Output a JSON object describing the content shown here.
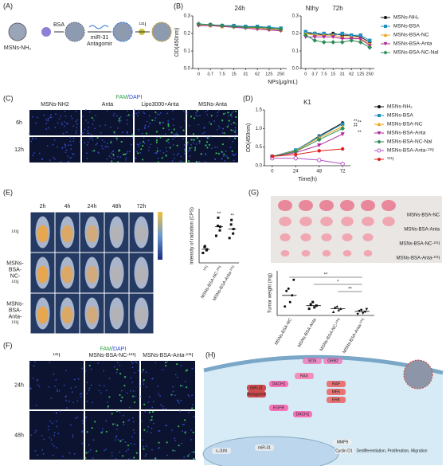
{
  "panel_labels": [
    "(A)",
    "(B)",
    "(C)",
    "(D)",
    "(E)",
    "(F)",
    "(G)",
    "(H)"
  ],
  "panel_a": {
    "labels": [
      "MSNs-NH₂",
      "BSA",
      "miR-31",
      "Antagomir",
      "¹³¹I"
    ]
  },
  "panel_c": {
    "stain": {
      "green": "FAM",
      "blue": "/DAPI"
    },
    "columns": [
      "MSNs-NH2",
      "Anta",
      "Lipo3000+Anta",
      "MSNs-Anta"
    ],
    "rows": [
      "6h",
      "12h"
    ]
  },
  "panel_e": {
    "times": [
      "2h",
      "4h",
      "24h",
      "48h",
      "72h"
    ],
    "groups": [
      "¹³¹I",
      "MSNs-BSA-NC-¹³¹I",
      "MSNs-BSA-Anta-¹³¹I"
    ]
  },
  "panel_f": {
    "stain": {
      "green": "FAM",
      "blue": "/DAPI"
    },
    "columns": [
      "¹³¹I",
      "MSNs-BSA-NC-¹³¹I",
      "MSNs-BSA-Anta-¹³¹I"
    ],
    "rows": [
      "24h",
      "48h"
    ]
  },
  "panel_g": {
    "photo_labels": [
      "MSNs-BSA-NC",
      "MSNs-BSA-Anta",
      "MSNs-BSA-NC-¹³¹I",
      "MSNs-BSA-Anta-¹³¹I"
    ]
  },
  "panel_h": {
    "labels": [
      "SOS",
      "GRB2",
      "RAS",
      "RAF",
      "MEK",
      "ERK",
      "miR-31",
      "Antagomir",
      "DACH1",
      "EGFR",
      "DACH1",
      "c-JUN",
      "miR-31",
      "MMP9",
      "Cyclin D1",
      "Dedifferentiation, Proliferation, Migration"
    ]
  },
  "chart_data": [
    {
      "type": "line",
      "title": "24h",
      "annotation": "Nthy",
      "ylabel": "OD(450nm)",
      "xlabel": "NPs(μg/mL)",
      "categories": [
        "0",
        "3.7",
        "7.5",
        "15",
        "31",
        "62",
        "125",
        "250"
      ],
      "ylim": [
        0,
        0.3
      ],
      "yticks": [
        {
          "value": 0,
          "label": "0.0"
        },
        0.1,
        0.2,
        0.3
      ],
      "series": [
        {
          "color": "#111111",
          "marker": "circle",
          "values": [
            0.25,
            0.25,
            0.245,
            0.24,
            0.24,
            0.235,
            0.23,
            0.225
          ]
        },
        {
          "color": "#1f8fbf",
          "marker": "square",
          "values": [
            0.25,
            0.25,
            0.245,
            0.245,
            0.24,
            0.24,
            0.235,
            0.23
          ]
        },
        {
          "color": "#e8a317",
          "marker": "triangle",
          "values": [
            0.25,
            0.245,
            0.24,
            0.24,
            0.235,
            0.23,
            0.225,
            0.22
          ]
        },
        {
          "color": "#b0279a",
          "marker": "triangle-down",
          "values": [
            0.245,
            0.245,
            0.24,
            0.235,
            0.23,
            0.225,
            0.22,
            0.215
          ]
        },
        {
          "color": "#2e8b57",
          "marker": "diamond",
          "values": [
            0.255,
            0.25,
            0.245,
            0.24,
            0.235,
            0.235,
            0.23,
            0.225
          ]
        }
      ]
    },
    {
      "type": "line",
      "title": "72h",
      "categories": [
        "0",
        "3.7",
        "7.5",
        "15",
        "31",
        "62",
        "125",
        "250"
      ],
      "ylim": [
        0,
        0.3
      ],
      "yticks": [
        {
          "value": 0,
          "label": "0.0"
        },
        0.1,
        0.2,
        0.3
      ],
      "series": [
        {
          "name": "MSNs-NH₂",
          "color": "#111111",
          "marker": "circle",
          "values": [
            0.2,
            0.2,
            0.19,
            0.2,
            0.19,
            0.19,
            0.18,
            0.15
          ]
        },
        {
          "name": "MSNs-BSA",
          "color": "#1f8fbf",
          "marker": "square",
          "values": [
            0.21,
            0.2,
            0.2,
            0.19,
            0.2,
            0.19,
            0.19,
            0.16
          ]
        },
        {
          "name": "MSNs-BSA-NC",
          "color": "#e8a317",
          "marker": "triangle",
          "values": [
            0.2,
            0.19,
            0.19,
            0.19,
            0.18,
            0.18,
            0.17,
            0.14
          ]
        },
        {
          "name": "MSNs-BSA-Anta",
          "color": "#b0279a",
          "marker": "triangle-down",
          "values": [
            0.18,
            0.18,
            0.18,
            0.18,
            0.17,
            0.17,
            0.17,
            0.13
          ]
        },
        {
          "name": "MSNs-BSA-NC-NaI",
          "color": "#2e8b57",
          "marker": "diamond",
          "values": [
            0.19,
            0.16,
            0.15,
            0.15,
            0.15,
            0.16,
            0.15,
            0.12
          ]
        }
      ]
    },
    {
      "type": "line",
      "title": "K1",
      "ylabel": "OD(450nm)",
      "xlabel": "Time(h)",
      "x": [
        0,
        24,
        48,
        72
      ],
      "xlim": [
        -8,
        80
      ],
      "xticks": [
        0,
        24,
        48,
        72
      ],
      "ylim": [
        0,
        1.5
      ],
      "yticks": [
        {
          "value": 0,
          "label": "0.0"
        },
        0.5,
        {
          "value": 1,
          "label": "1.0"
        },
        1.5
      ],
      "annotations": [
        "**",
        "**",
        "**",
        "**",
        "**"
      ],
      "series": [
        {
          "name": "MSNs-NH₂",
          "color": "#111111",
          "marker": "circle",
          "values": [
            0.25,
            0.4,
            0.8,
            1.15
          ]
        },
        {
          "name": "MSNs-BSA",
          "color": "#1f8fbf",
          "marker": "square",
          "values": [
            0.25,
            0.42,
            0.78,
            1.12
          ]
        },
        {
          "name": "MSNs-BSA-NC",
          "color": "#e8a317",
          "marker": "triangle",
          "values": [
            0.25,
            0.4,
            0.75,
            1.05
          ]
        },
        {
          "name": "MSNs-BSA-Anta",
          "color": "#b0279a",
          "marker": "triangle-down",
          "values": [
            0.25,
            0.35,
            0.55,
            0.85
          ]
        },
        {
          "name": "MSNs-BSA-NC-NaI",
          "color": "#2e8b57",
          "marker": "diamond",
          "values": [
            0.25,
            0.38,
            0.7,
            1.0
          ]
        },
        {
          "name": "MSNs-BSA-Anta-¹³¹I",
          "color": "#b455c8",
          "marker": "open-circle",
          "values": [
            0.2,
            0.2,
            0.15,
            0.05
          ]
        },
        {
          "name": "¹³¹I",
          "color": "#e02020",
          "marker": "circle",
          "values": [
            0.25,
            0.3,
            0.4,
            0.45
          ]
        }
      ]
    },
    {
      "type": "strip",
      "ylabel": "Intensity of radiation (CPS)",
      "color": "#111111",
      "ylim": [
        0,
        120
      ],
      "categories": [
        "¹³¹I",
        "MSNs-BSA-NC-¹³¹I",
        "MSNs-BSA-Anta-¹³¹I"
      ],
      "points": [
        [
          22,
          28,
          30,
          35,
          37
        ],
        [
          60,
          72,
          80,
          82,
          100
        ],
        [
          55,
          65,
          75,
          85,
          95
        ]
      ],
      "means": [
        30,
        80,
        75
      ],
      "annotations": [
        null,
        "**",
        "**"
      ]
    },
    {
      "type": "strip",
      "ylabel": "Tumor weight (mg)",
      "color": "#111111",
      "ylim": [
        0,
        100
      ],
      "categories": [
        "MSNs-BSA-NC",
        "MSNs-BSA-Anta",
        "MSNs-BSA-NC-¹³¹I",
        "MSNs-BSA-Anta-¹³¹I"
      ],
      "points": [
        [
          20,
          30,
          45,
          55,
          60,
          80
        ],
        [
          15,
          18,
          22,
          25,
          30
        ],
        [
          8,
          12,
          15,
          18,
          20
        ],
        [
          3,
          5,
          8,
          10,
          12,
          14
        ]
      ],
      "means": [
        45,
        22,
        15,
        9
      ],
      "annotations": [
        "**",
        "*",
        "**"
      ]
    }
  ]
}
